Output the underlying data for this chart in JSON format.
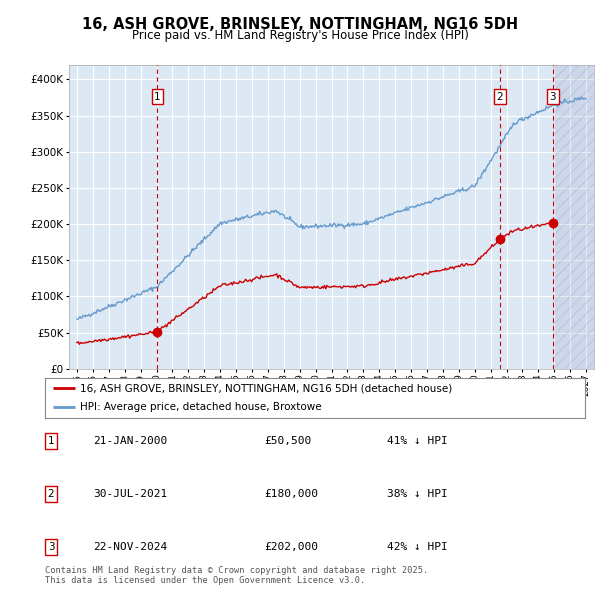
{
  "title": "16, ASH GROVE, BRINSLEY, NOTTINGHAM, NG16 5DH",
  "subtitle": "Price paid vs. HM Land Registry's House Price Index (HPI)",
  "bg_color": "#dce9f5",
  "sales": [
    {
      "date_label": "21-JAN-2000",
      "date_x": 2000.06,
      "price": 50500,
      "label": "41% ↓ HPI",
      "num": 1
    },
    {
      "date_label": "30-JUL-2021",
      "date_x": 2021.58,
      "price": 180000,
      "label": "38% ↓ HPI",
      "num": 2
    },
    {
      "date_label": "22-NOV-2024",
      "date_x": 2024.9,
      "price": 202000,
      "label": "42% ↓ HPI",
      "num": 3
    }
  ],
  "legend_property": "16, ASH GROVE, BRINSLEY, NOTTINGHAM, NG16 5DH (detached house)",
  "legend_hpi": "HPI: Average price, detached house, Broxtowe",
  "footer": "Contains HM Land Registry data © Crown copyright and database right 2025.\nThis data is licensed under the Open Government Licence v3.0.",
  "ylim": [
    0,
    420000
  ],
  "xlim": [
    1994.5,
    2027.5
  ],
  "property_color": "#cc0000",
  "hpi_color": "#6699cc",
  "hatch_start": 2024.9
}
